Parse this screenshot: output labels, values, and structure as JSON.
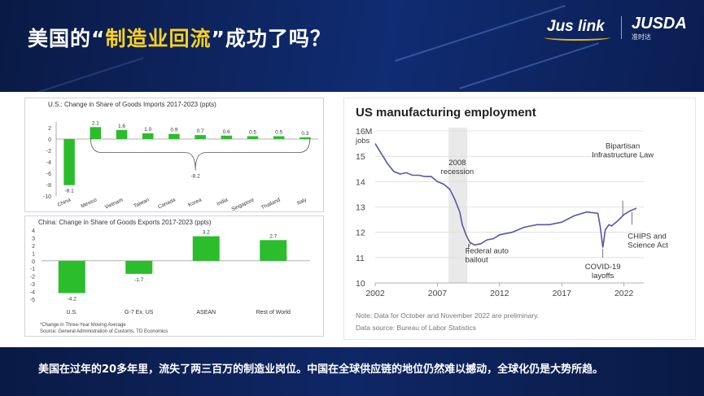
{
  "slide": {
    "title_part1": "美国的“",
    "title_highlight": "制造业回流",
    "title_part2": "”成功了吗？",
    "logo_left": "Jus link",
    "logo_right": "JUSDA",
    "logo_right_sub": "准时达",
    "footer": "美国在过年的20多年里，流失了两三百万的制造业岗位。中国在全球供应链的地位仍然难以撼动，全球化仍是大势所趋。",
    "colors": {
      "header_bg": "#102c72",
      "highlight": "#ffd21e",
      "bar_green": "#2bbd2b",
      "line_purple": "#5a55a8"
    }
  },
  "chart_data": [
    {
      "type": "bar",
      "title": "U.S.: Change in Share of Goods Imports 2017-2023 (ppts)",
      "categories": [
        "China",
        "Mexico",
        "Vietnam",
        "Taiwan",
        "Canada",
        "Korea",
        "India",
        "Singapore",
        "Thailand",
        "Italy"
      ],
      "values": [
        -8.1,
        2.1,
        1.6,
        1.0,
        0.9,
        0.7,
        0.6,
        0.5,
        0.5,
        0.3
      ],
      "data_labels": [
        "-8.1",
        "2.1",
        "1.6",
        "1.0",
        "0.9",
        "0.7",
        "0.6",
        "0.5",
        "0.5",
        "0.3"
      ],
      "brace_label": "-8.2",
      "yticks": [
        2,
        0,
        -2,
        -4,
        -6,
        -8,
        -10
      ],
      "ylim": [
        -10,
        3
      ],
      "grid": false
    },
    {
      "type": "bar",
      "title": "China: Change in Share of Goods Exports 2017-2023 (ppts)",
      "categories": [
        "U.S.",
        "G-7 Ex. US",
        "ASEAN",
        "Rest of World"
      ],
      "values": [
        -4.2,
        -1.7,
        3.2,
        2.7
      ],
      "data_labels": [
        "-4.2",
        "-1.7",
        "3.2",
        "2.7"
      ],
      "yticks": [
        4,
        3,
        2,
        1,
        0,
        -1,
        -2,
        -3,
        -4,
        -5
      ],
      "ylim": [
        -5,
        4
      ],
      "note": "*Change in Three-Year Moving Average",
      "source": "Source: General Administration of Customs, TD Economics",
      "grid": false
    },
    {
      "type": "line",
      "title": "US manufacturing employment",
      "y_unit_label": "jobs",
      "ytick_labels": [
        "16M",
        "15",
        "14",
        "13",
        "12",
        "11",
        "10"
      ],
      "yticks": [
        16,
        15,
        14,
        13,
        12,
        11,
        10
      ],
      "xticks": [
        2002,
        2007,
        2012,
        2017,
        2022
      ],
      "ylim": [
        10,
        16
      ],
      "xlim": [
        2002,
        2023.2
      ],
      "recession_band": [
        2007.9,
        2009.4
      ],
      "grid": true,
      "series": [
        {
          "x": [
            2002.0,
            2002.5,
            2003.0,
            2003.5,
            2004.0,
            2004.5,
            2005.0,
            2005.5,
            2006.0,
            2006.5,
            2007.0,
            2007.5,
            2008.0,
            2008.4,
            2008.8,
            2009.0,
            2009.3,
            2009.6,
            2010.0,
            2010.5,
            2011.0,
            2011.5,
            2012.0,
            2012.5,
            2013.0,
            2014.0,
            2015.0,
            2016.0,
            2017.0,
            2018.0,
            2019.0,
            2019.9,
            2020.1,
            2020.3,
            2020.5,
            2020.8,
            2021.0,
            2021.5,
            2022.0,
            2022.5,
            2023.0
          ],
          "y": [
            15.5,
            15.1,
            14.7,
            14.4,
            14.3,
            14.35,
            14.25,
            14.25,
            14.2,
            14.2,
            14.0,
            13.9,
            13.7,
            13.3,
            12.8,
            12.3,
            11.9,
            11.6,
            11.5,
            11.55,
            11.7,
            11.75,
            11.9,
            11.95,
            12.0,
            12.2,
            12.3,
            12.3,
            12.4,
            12.65,
            12.8,
            12.75,
            12.2,
            11.4,
            12.1,
            12.3,
            12.25,
            12.45,
            12.7,
            12.85,
            12.95
          ]
        }
      ],
      "annotations": [
        {
          "text": "2008\nrecession",
          "x": 2008.6,
          "y": 14.5
        },
        {
          "text": "Federal auto\nbailout",
          "x": 2009.5,
          "y": 11.4
        },
        {
          "text": "Bipartisan\nInfrastructure Law",
          "x": 2021.9,
          "y": 12.7
        },
        {
          "text": "COVID-19\nlayoffs",
          "x": 2020.3,
          "y": 11.4
        },
        {
          "text": "CHIPS and\nScience Act",
          "x": 2022.6,
          "y": 12.8
        }
      ],
      "note": "Note: Data for October and November 2022 are preliminary.",
      "source": "Data source: Bureau of Labor Statistics"
    }
  ]
}
